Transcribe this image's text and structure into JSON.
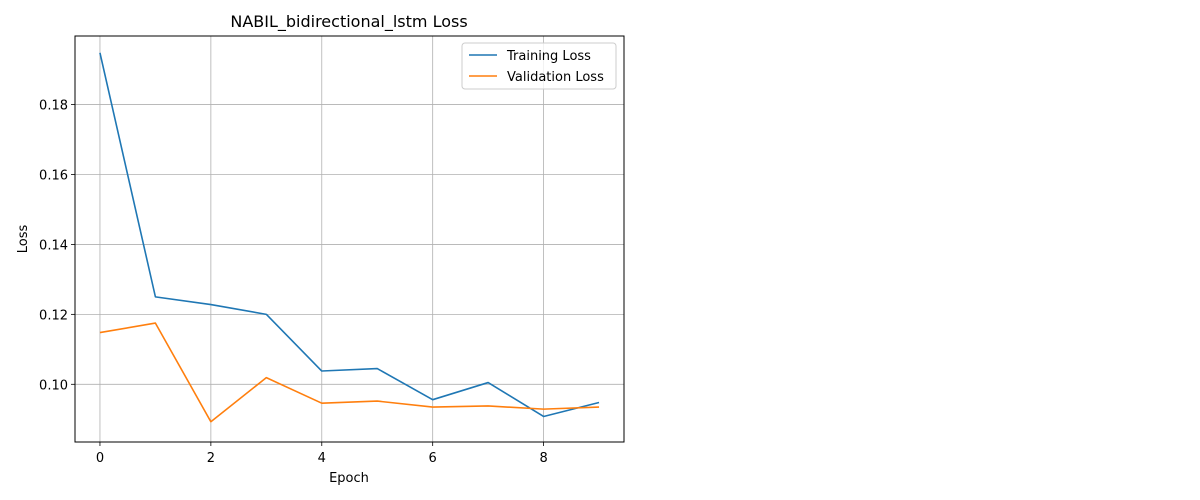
{
  "chart_data": {
    "type": "line",
    "title": "NABIL_bidirectional_lstm Loss",
    "xlabel": "Epoch",
    "ylabel": "Loss",
    "x": [
      0,
      1,
      2,
      3,
      4,
      5,
      6,
      7,
      8,
      9
    ],
    "xlim": [
      -0.45,
      9.45
    ],
    "ylim": [
      0.0835,
      0.1996
    ],
    "xticks": [
      0,
      2,
      4,
      6,
      8
    ],
    "xtick_labels": [
      "0",
      "2",
      "4",
      "6",
      "8"
    ],
    "yticks": [
      0.1,
      0.12,
      0.14,
      0.16,
      0.18
    ],
    "ytick_labels": [
      "0.10",
      "0.12",
      "0.14",
      "0.16",
      "0.18"
    ],
    "grid": true,
    "legend_position": "top-right",
    "series": [
      {
        "name": "Training Loss",
        "color": "#1f77b4",
        "values": [
          0.1948,
          0.125,
          0.1228,
          0.12,
          0.1038,
          0.1045,
          0.0956,
          0.1005,
          0.0908,
          0.0948
        ]
      },
      {
        "name": "Validation Loss",
        "color": "#ff7f0e",
        "values": [
          0.1148,
          0.1175,
          0.0893,
          0.1019,
          0.0946,
          0.0952,
          0.0935,
          0.0938,
          0.0929,
          0.0935
        ]
      }
    ]
  }
}
